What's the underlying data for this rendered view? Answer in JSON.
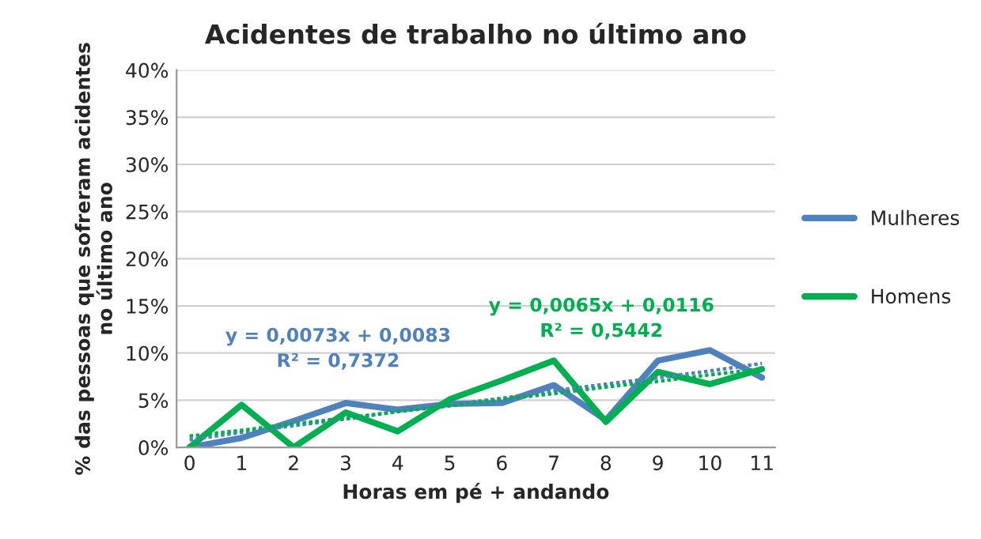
{
  "chart_data": {
    "type": "line",
    "title": "Acidentes de trabalho no último ano",
    "xlabel": "Horas em pé + andando",
    "ylabel": "% das pessoas que sofreram acidentes\nno último ano",
    "x": [
      0,
      1,
      2,
      3,
      4,
      5,
      6,
      7,
      8,
      9,
      10,
      11
    ],
    "series": [
      {
        "name": "Mulheres",
        "color": "#4f81bd",
        "values": [
          0,
          1.0,
          2.8,
          4.7,
          4.0,
          4.6,
          4.7,
          6.6,
          2.9,
          9.2,
          10.3,
          7.4
        ]
      },
      {
        "name": "Homens",
        "color": "#00b050",
        "values": [
          0,
          4.5,
          0,
          3.7,
          1.7,
          5.1,
          7.1,
          9.2,
          2.7,
          8.0,
          6.7,
          8.3
        ]
      },
      {
        "type": "line",
        "color": "#4f81bd",
        "line_style": "dotted",
        "values": [
          0.8,
          1.6,
          2.3,
          3.0,
          3.8,
          4.5,
          5.2,
          6.0,
          6.7,
          7.4,
          8.1,
          8.9
        ]
      },
      {
        "type": "line",
        "color": "#00b050",
        "line_style": "dotted",
        "values": [
          1.2,
          1.8,
          2.5,
          3.1,
          3.8,
          4.4,
          5.1,
          5.7,
          6.4,
          7.0,
          7.7,
          8.3
        ]
      }
    ],
    "annotations": [
      "y = 0,0073x + 0,0083\nR² = 0,7372",
      "y = 0,0065x + 0,0116\nR² = 0,5442"
    ],
    "xlim": [
      -0.25,
      11.25
    ],
    "xticks": [
      0,
      1,
      2,
      3,
      4,
      5,
      6,
      7,
      8,
      9,
      10,
      11
    ],
    "ylim": [
      0,
      40
    ],
    "yticks": [
      {
        "value": 0,
        "label": "0%"
      },
      {
        "value": 5,
        "label": "5%"
      },
      {
        "value": 10,
        "label": "10%"
      },
      {
        "value": 15,
        "label": "15%"
      },
      {
        "value": 20,
        "label": "20%"
      },
      {
        "value": 25,
        "label": "25%"
      },
      {
        "value": 30,
        "label": "30%"
      },
      {
        "value": 35,
        "label": "35%"
      },
      {
        "value": 40,
        "label": "40%"
      }
    ],
    "grid": "y",
    "legend": "right",
    "marker": "none",
    "line_style": "solid"
  }
}
